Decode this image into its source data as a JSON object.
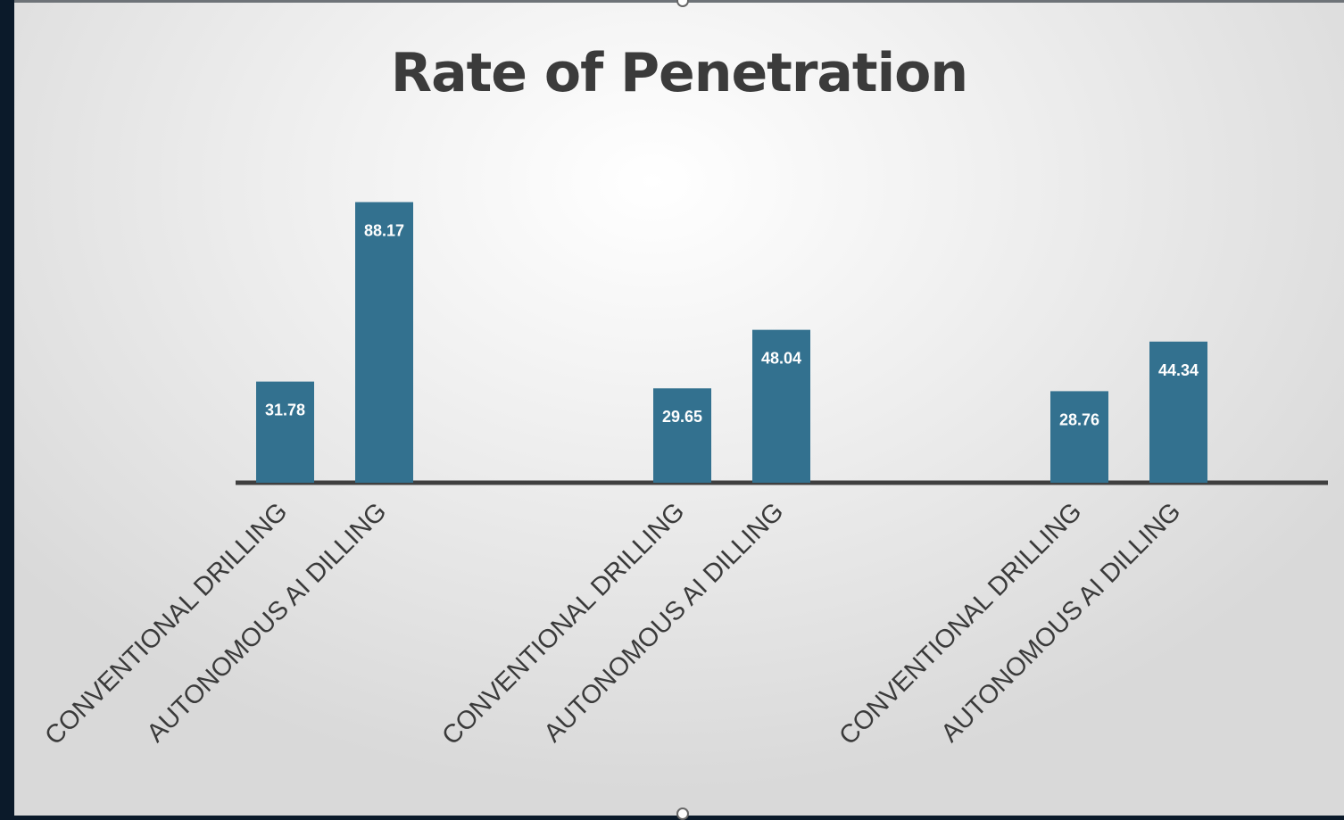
{
  "chart_data": {
    "type": "bar",
    "title": "Rate of Penetration",
    "categories": [
      "CONVENTIONAL DRILLING",
      "AUTONOMOUS AI DILLING",
      "CONVENTIONAL DRILLING",
      "AUTONOMOUS AI DILLING",
      "CONVENTIONAL DRILLING",
      "AUTONOMOUS AI DILLING"
    ],
    "values": [
      31.78,
      88.17,
      29.65,
      48.04,
      28.76,
      44.34
    ],
    "data_labels": [
      "31.78",
      "88.17",
      "29.65",
      "48.04",
      "28.76",
      "44.34"
    ],
    "groups": 3,
    "bar_color": "#33718f",
    "label_color": "#ffffff",
    "axis_color": "#3f3f3f",
    "xlabel": "",
    "ylabel": "",
    "grid": false,
    "legend": "none"
  }
}
